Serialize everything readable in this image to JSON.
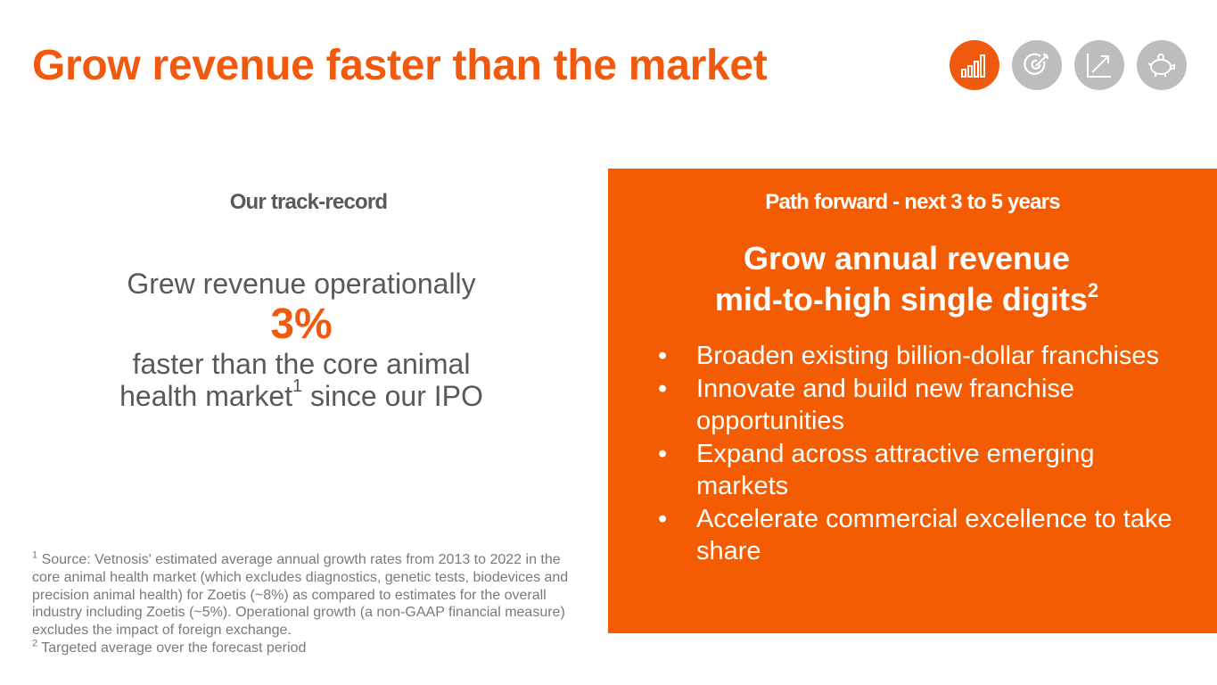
{
  "title": "Grow revenue faster than the market",
  "nav_icons": [
    {
      "icon": "bar-chart-icon",
      "active": true
    },
    {
      "icon": "target-icon",
      "active": false
    },
    {
      "icon": "trend-arrow-icon",
      "active": false
    },
    {
      "icon": "piggy-bank-icon",
      "active": false
    }
  ],
  "track_record": {
    "heading": "Our track-record",
    "line1": "Grew revenue operationally",
    "highlight": "3%",
    "line2": "faster than the core animal",
    "line3a": "health market",
    "line3_sup": "1",
    "line3b": " since our IPO"
  },
  "footnotes": {
    "note1_marker": "1",
    "note1_text": " Source: Vetnosis' estimated average annual growth rates from 2013 to 2022 in the core animal health market (which excludes diagnostics, genetic tests, biodevices and precision animal health) for Zoetis (~8%) as compared to estimates for the overall industry including Zoetis (~5%). Operational growth (a non-GAAP financial measure) excludes the impact of foreign exchange.",
    "note2_marker": "2",
    "note2_text": " Targeted average over the forecast period"
  },
  "path_forward": {
    "heading": "Path forward - next 3 to 5 years",
    "goal_line1": "Grow annual revenue",
    "goal_line2": "mid-to-high single digits",
    "goal_sup": "2",
    "bullet_glyph": "•",
    "bullets": [
      "Broaden existing billion-dollar franchises",
      "Innovate and build new franchise opportunities",
      "Expand across attractive emerging markets",
      "Accelerate commercial excellence to take share"
    ]
  },
  "colors": {
    "accent": "#f05a0f",
    "panel": "#f45c03",
    "inactive_icon": "#bdbdbd",
    "body_text": "#595959"
  }
}
